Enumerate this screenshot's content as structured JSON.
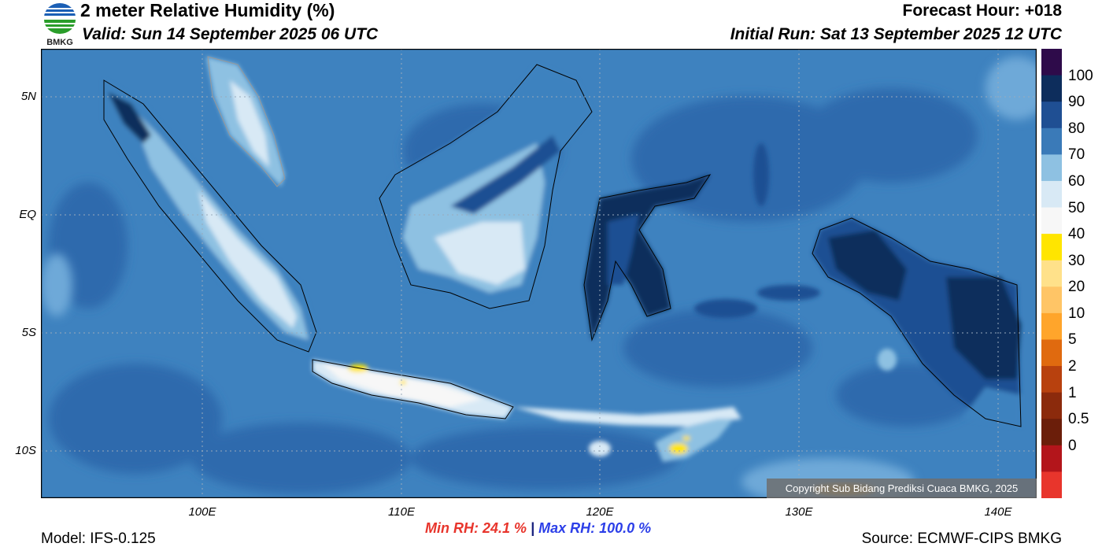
{
  "header": {
    "title": "2 meter Relative Humidity (%)",
    "valid": "Valid: Sun 14 September 2025 06 UTC",
    "forecast_hour": "Forecast Hour: +018",
    "initial_run": "Initial Run: Sat 13 September 2025 12 UTC"
  },
  "logo": {
    "text": "BMKG",
    "icon": "bmkg-logo-icon"
  },
  "map": {
    "lat_labels": [
      "5N",
      "EQ",
      "5S",
      "10S"
    ],
    "lon_labels": [
      "100E",
      "110E",
      "120E",
      "130E",
      "140E"
    ],
    "copyright": "Copyright Sub Bidang Prediksi Cuaca BMKG, 2025"
  },
  "colorbar": {
    "labels": [
      "100",
      "90",
      "80",
      "70",
      "60",
      "50",
      "40",
      "30",
      "20",
      "10",
      "5",
      "2",
      "1",
      "0.5",
      "0"
    ],
    "colors": [
      "#2e0b4a",
      "#0d2d5c",
      "#1f4f93",
      "#3a7ab8",
      "#8ec1e2",
      "#d8e9f5",
      "#f7f7f7",
      "#ffe500",
      "#ffe18a",
      "#ffc566",
      "#ffa52b",
      "#e06a0f",
      "#b8410e",
      "#8b2a0c",
      "#6b1e0a",
      "#b3151b",
      "#e8352c"
    ]
  },
  "stats": {
    "min": "Min RH:  24.1 %",
    "separator": "|",
    "max": "Max RH: 100.0 %"
  },
  "footer": {
    "model": "Model: IFS-0.125",
    "source": "Source: ECMWF-CIPS BMKG"
  }
}
